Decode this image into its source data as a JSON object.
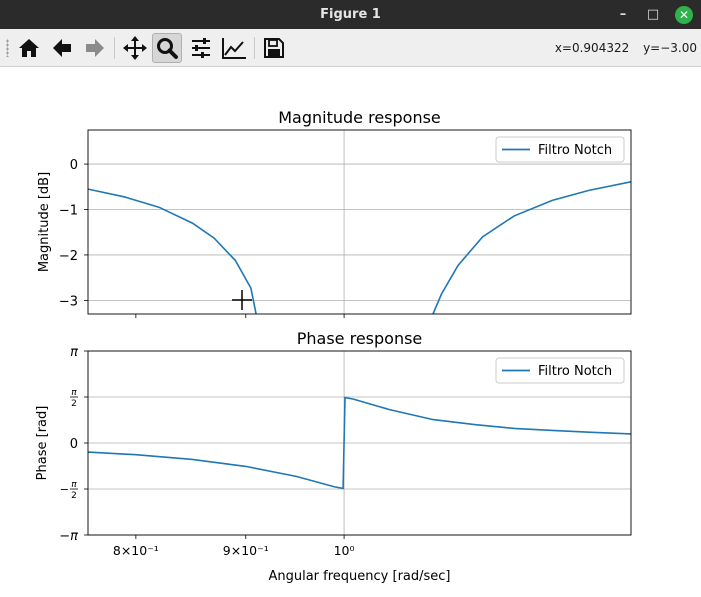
{
  "window": {
    "title": "Figure 1",
    "minimize_icon": "minimize-icon",
    "maximize_icon": "maximize-icon",
    "close_icon": "close-icon"
  },
  "toolbar": {
    "buttons": [
      {
        "name": "home-button",
        "icon": "home-icon"
      },
      {
        "name": "back-button",
        "icon": "arrow-left-icon"
      },
      {
        "name": "forward-button",
        "icon": "arrow-right-icon"
      },
      {
        "name": "pan-button",
        "icon": "move-icon"
      },
      {
        "name": "zoom-button",
        "icon": "magnifier-icon",
        "active": true
      },
      {
        "name": "configure-subplots-button",
        "icon": "sliders-icon"
      },
      {
        "name": "edit-axes-button",
        "icon": "line-chart-icon"
      },
      {
        "name": "save-button",
        "icon": "floppy-disk-icon"
      }
    ],
    "coords": {
      "x": "x=0.904322",
      "y": "y=−3.00"
    }
  },
  "chart_data": [
    {
      "type": "line",
      "title": "Magnitude response",
      "xlabel": "",
      "ylabel": "Magnitude [dB]",
      "xscale": "log",
      "xlim": [
        0.76,
        1.36
      ],
      "ylim": [
        -3.3,
        0.75
      ],
      "yticks": [
        0,
        -1,
        -2,
        -3
      ],
      "ytick_labels": [
        "0",
        "−1",
        "−2",
        "−3"
      ],
      "grid": true,
      "legend": "top-right",
      "series": [
        {
          "name": "Filtro Notch",
          "color": "#1f77b4",
          "x": [
            0.76,
            0.79,
            0.82,
            0.85,
            0.87,
            0.89,
            0.905,
            0.91,
            1.1,
            1.11,
            1.13,
            1.16,
            1.2,
            1.25,
            1.3,
            1.36
          ],
          "y": [
            -0.55,
            -0.72,
            -0.95,
            -1.3,
            -1.63,
            -2.12,
            -2.73,
            -3.3,
            -3.3,
            -2.86,
            -2.23,
            -1.6,
            -1.14,
            -0.8,
            -0.58,
            -0.39
          ]
        }
      ],
      "legend_labels": [
        "Filtro Notch"
      ]
    },
    {
      "type": "line",
      "title": "Phase response",
      "xlabel": "Angular frequency [rad/sec]",
      "ylabel": "Phase [rad]",
      "xscale": "log",
      "xlim": [
        0.76,
        1.36
      ],
      "ylim": [
        -3.1416,
        3.1416
      ],
      "yticks": [
        3.1416,
        1.5708,
        0,
        -1.5708,
        -3.1416
      ],
      "ytick_labels": [
        "π",
        "π/2",
        "0",
        "−π/2",
        "−π"
      ],
      "xticks": [
        0.8,
        0.9,
        1.0
      ],
      "xtick_labels": [
        "8×10⁻¹",
        "9×10⁻¹",
        "10⁰"
      ],
      "grid": true,
      "legend": "top-right",
      "series": [
        {
          "name": "Filtro Notch",
          "color": "#1f77b4",
          "x": [
            0.76,
            0.8,
            0.85,
            0.9,
            0.95,
            0.99,
            0.999,
            1.001,
            1.01,
            1.05,
            1.1,
            1.15,
            1.2,
            1.25,
            1.3,
            1.36
          ],
          "y": [
            -0.31,
            -0.4,
            -0.56,
            -0.8,
            -1.14,
            -1.5,
            -1.55,
            1.55,
            1.5,
            1.14,
            0.8,
            0.63,
            0.5,
            0.43,
            0.37,
            0.31
          ]
        }
      ],
      "legend_labels": [
        "Filtro Notch"
      ]
    }
  ]
}
